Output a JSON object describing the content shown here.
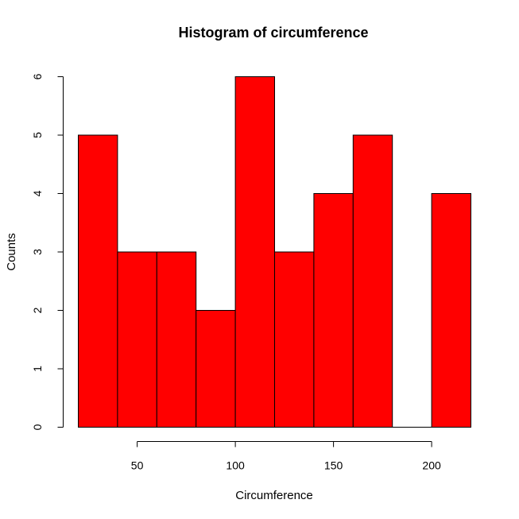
{
  "chart_data": {
    "type": "bar",
    "title": "Histogram of circumference",
    "xlabel": "Circumference",
    "ylabel": "Counts",
    "bins": [
      {
        "start": 20,
        "end": 40,
        "count": 5
      },
      {
        "start": 40,
        "end": 60,
        "count": 3
      },
      {
        "start": 60,
        "end": 80,
        "count": 3
      },
      {
        "start": 80,
        "end": 100,
        "count": 2
      },
      {
        "start": 100,
        "end": 120,
        "count": 6
      },
      {
        "start": 120,
        "end": 140,
        "count": 3
      },
      {
        "start": 140,
        "end": 160,
        "count": 4
      },
      {
        "start": 160,
        "end": 180,
        "count": 5
      },
      {
        "start": 180,
        "end": 200,
        "count": 0
      },
      {
        "start": 200,
        "end": 220,
        "count": 4
      }
    ],
    "x_ticks": [
      50,
      100,
      150,
      200
    ],
    "y_ticks": [
      0,
      1,
      2,
      3,
      4,
      5,
      6
    ],
    "xlim": [
      20,
      220
    ],
    "ylim": [
      0,
      6
    ],
    "bar_color": "#ff0000",
    "grid": false
  }
}
